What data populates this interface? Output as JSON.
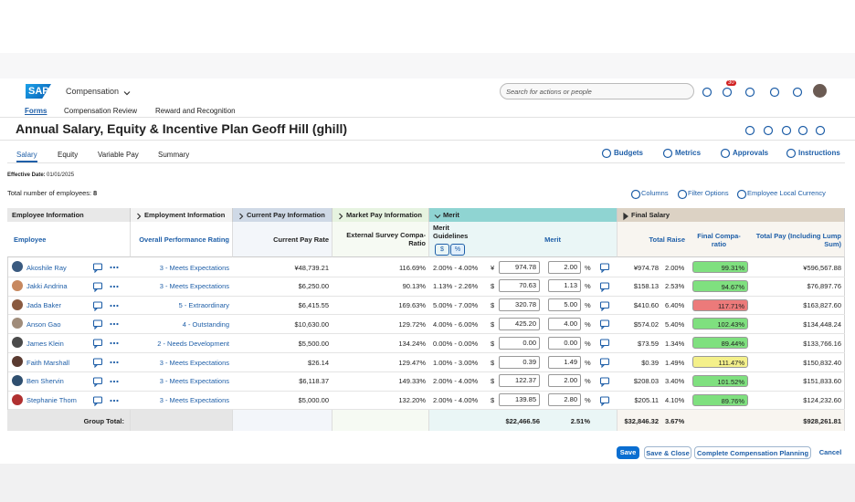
{
  "header": {
    "logo": "SAP",
    "app": "Compensation",
    "search_placeholder": "Search for actions or people",
    "badge": "30"
  },
  "nav": [
    "Forms",
    "Compensation Review",
    "Reward and Recognition"
  ],
  "title": "Annual Salary, Equity & Incentive Plan Geoff Hill (ghill)",
  "tabs": [
    "Salary",
    "Equity",
    "Variable Pay",
    "Summary"
  ],
  "actions": [
    "Budgets",
    "Metrics",
    "Approvals",
    "Instructions"
  ],
  "effective_date": {
    "label": "Effective Date:",
    "value": "01/01/2025"
  },
  "employee_count": {
    "label": "Total number of employees:",
    "value": 8
  },
  "toolbar": [
    "Columns",
    "Filter Options",
    "Employee Local Currency"
  ],
  "table": {
    "group_headers": [
      "Employee Information",
      "Employment Information",
      "Current Pay Information",
      "Market Pay Information",
      "Merit",
      "Final Salary"
    ],
    "column_headers": {
      "employee": "Employee",
      "rating": "Overall Performance Rating",
      "current_pay": "Current Pay Rate",
      "compa": "External Survey Compa-Ratio",
      "guidelines": "Merit Guidelines",
      "merit": "Merit",
      "total_raise": "Total Raise",
      "final_compa": "Final Compa-ratio",
      "total_pay": "Total Pay (Including Lump Sum)"
    },
    "toggle": [
      "$",
      "%"
    ],
    "merit_unit": "%",
    "rows": [
      {
        "name": "Akoshile Ray",
        "rating": "3 - Meets Expectations",
        "current_pay": "¥48,739.21",
        "compa": "116.69%",
        "guidelines": "2.00% - 4.00%",
        "currency": "¥",
        "merit_amount": "974.78",
        "merit_pct": "2.00",
        "raise_amount": "¥974.78",
        "raise_pct": "2.00%",
        "final_compa": "99.31%",
        "compa_color": "#7fe07f",
        "total_pay": "¥596,567.88"
      },
      {
        "name": "Jakki Andrina",
        "rating": "3 - Meets Expectations",
        "current_pay": "$6,250.00",
        "compa": "90.13%",
        "guidelines": "1.13% - 2.26%",
        "currency": "$",
        "merit_amount": "70.63",
        "merit_pct": "1.13",
        "raise_amount": "$158.13",
        "raise_pct": "2.53%",
        "final_compa": "94.67%",
        "compa_color": "#7fe07f",
        "total_pay": "$76,897.76"
      },
      {
        "name": "Jada Baker",
        "rating": "5 - Extraordinary",
        "current_pay": "$6,415.55",
        "compa": "169.63%",
        "guidelines": "5.00% - 7.00%",
        "currency": "$",
        "merit_amount": "320.78",
        "merit_pct": "5.00",
        "raise_amount": "$410.60",
        "raise_pct": "6.40%",
        "final_compa": "117.71%",
        "compa_color": "#ec7a7a",
        "total_pay": "$163,827.60"
      },
      {
        "name": "Anson Gao",
        "rating": "4 - Outstanding",
        "current_pay": "$10,630.00",
        "compa": "129.72%",
        "guidelines": "4.00% - 6.00%",
        "currency": "$",
        "merit_amount": "425.20",
        "merit_pct": "4.00",
        "raise_amount": "$574.02",
        "raise_pct": "5.40%",
        "final_compa": "102.43%",
        "compa_color": "#7fe07f",
        "total_pay": "$134,448.24"
      },
      {
        "name": "James Klein",
        "rating": "2 - Needs Development",
        "current_pay": "$5,500.00",
        "compa": "134.24%",
        "guidelines": "0.00% - 0.00%",
        "currency": "$",
        "merit_amount": "0.00",
        "merit_pct": "0.00",
        "raise_amount": "$73.59",
        "raise_pct": "1.34%",
        "final_compa": "89.44%",
        "compa_color": "#7fe07f",
        "total_pay": "$133,766.16"
      },
      {
        "name": "Faith Marshall",
        "rating": "3 - Meets Expectations",
        "current_pay": "$26.14",
        "compa": "129.47%",
        "guidelines": "1.00% - 3.00%",
        "currency": "$",
        "merit_amount": "0.39",
        "merit_pct": "1.49",
        "raise_amount": "$0.39",
        "raise_pct": "1.49%",
        "final_compa": "111.47%",
        "compa_color": "#f4f08a",
        "total_pay": "$150,832.40"
      },
      {
        "name": "Ben Shervin",
        "rating": "3 - Meets Expectations",
        "current_pay": "$6,118.37",
        "compa": "149.33%",
        "guidelines": "2.00% - 4.00%",
        "currency": "$",
        "merit_amount": "122.37",
        "merit_pct": "2.00",
        "raise_amount": "$208.03",
        "raise_pct": "3.40%",
        "final_compa": "101.52%",
        "compa_color": "#7fe07f",
        "total_pay": "$151,833.60"
      },
      {
        "name": "Stephanie Thom",
        "rating": "3 - Meets Expectations",
        "current_pay": "$5,000.00",
        "compa": "132.20%",
        "guidelines": "2.00% - 4.00%",
        "currency": "$",
        "merit_amount": "139.85",
        "merit_pct": "2.80",
        "raise_amount": "$205.11",
        "raise_pct": "4.10%",
        "final_compa": "89.76%",
        "compa_color": "#7fe07f",
        "total_pay": "$124,232.60"
      }
    ],
    "total": {
      "label": "Group Total:",
      "merit_amount": "$22,466.56",
      "merit_pct": "2.51%",
      "raise_amount": "$32,846.32",
      "raise_pct": "3.67%",
      "total_pay": "$928,261.81"
    }
  },
  "buttons": [
    "Save",
    "Save & Close",
    "Complete Compensation Planning",
    "Cancel"
  ]
}
